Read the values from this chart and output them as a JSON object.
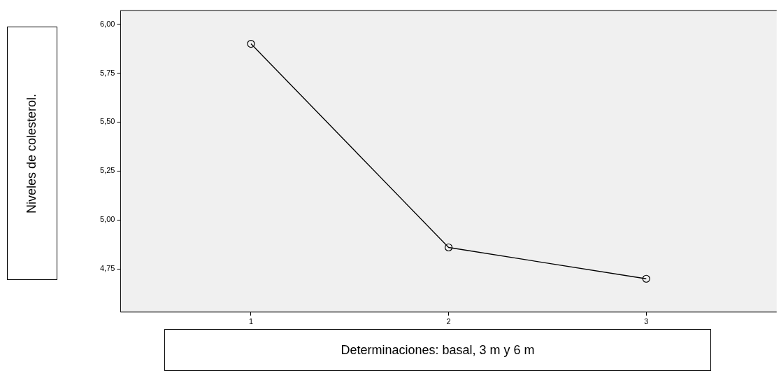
{
  "chart_data": {
    "type": "line",
    "xlabel": "Determinaciones: basal, 3 m y 6 m",
    "ylabel": "Niveles de colesterol.",
    "x": [
      1,
      2,
      3
    ],
    "series": [
      {
        "color": "#000000",
        "values": [
          5.9,
          4.86,
          4.7
        ]
      }
    ],
    "xlim": [
      0.34,
      3.66
    ],
    "xticks": [
      1,
      2,
      3
    ],
    "ylim": [
      4.53,
      6.07
    ],
    "yticks": [
      {
        "value": 4.75,
        "label": "4,75"
      },
      {
        "value": 5,
        "label": "5,00"
      },
      {
        "value": 5.25,
        "label": "5,25"
      },
      {
        "value": 5.5,
        "label": "5,50"
      },
      {
        "value": 5.75,
        "label": "5,75"
      },
      {
        "value": 6,
        "label": "6,00"
      }
    ],
    "grid": false,
    "legend": false,
    "marker": "circle",
    "line_style": "solid"
  }
}
